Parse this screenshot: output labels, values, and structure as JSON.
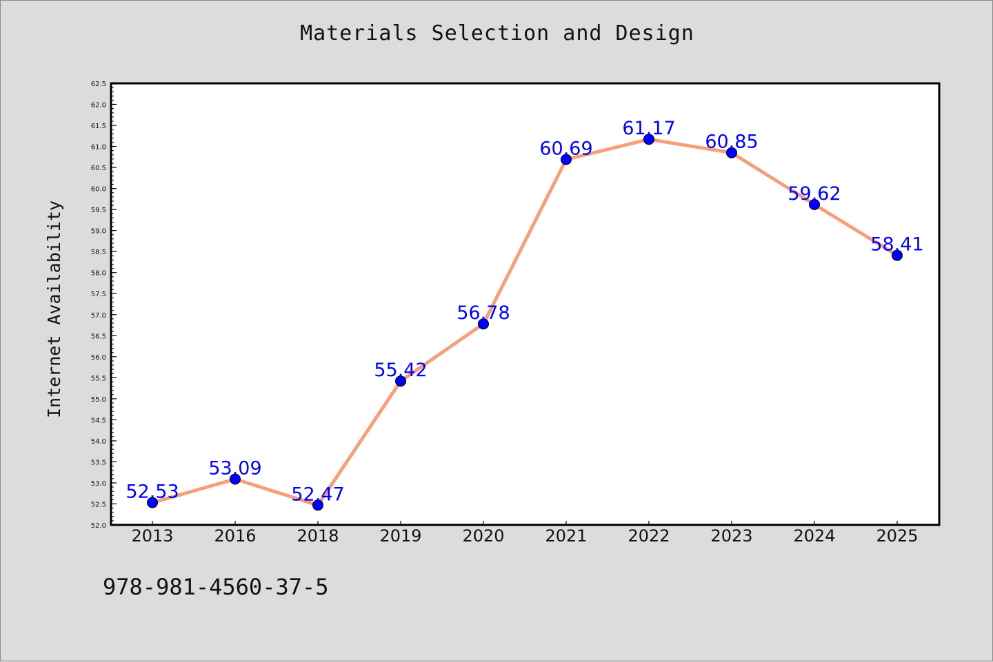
{
  "chart_data": {
    "type": "line",
    "title": "Materials Selection and Design",
    "xlabel": "",
    "ylabel": "Internet Availability",
    "categories": [
      "2013",
      "2016",
      "2018",
      "2019",
      "2020",
      "2021",
      "2022",
      "2023",
      "2024",
      "2025"
    ],
    "series": [
      {
        "values": [
          52.53,
          53.09,
          52.47,
          55.42,
          56.78,
          60.69,
          61.17,
          60.85,
          59.62,
          58.41
        ]
      }
    ],
    "data_labels": [
      "52.53",
      "53.09",
      "52.47",
      "55.42",
      "56.78",
      "60.69",
      "61.17",
      "60.85",
      "59.62",
      "58.41"
    ],
    "ylim": [
      52.0,
      62.5
    ],
    "ytick_step": 0.5,
    "ytick_labels": [
      "52.0",
      "52.5",
      "53.0",
      "53.5",
      "54.0",
      "54.5",
      "55.0",
      "55.5",
      "56.0",
      "56.5",
      "57.0",
      "57.5",
      "58.0",
      "58.5",
      "59.0",
      "59.5",
      "60.0",
      "60.5",
      "61.0",
      "61.5",
      "62.0",
      "62.5"
    ],
    "grid": false,
    "line_color": "#f4a07a",
    "marker_color": "#0000ff",
    "label_color": "#0000ff",
    "background": "#dcdcdc",
    "plot_background": "#ffffff"
  },
  "annotations": {
    "footer_code": "978-981-4560-37-5"
  }
}
